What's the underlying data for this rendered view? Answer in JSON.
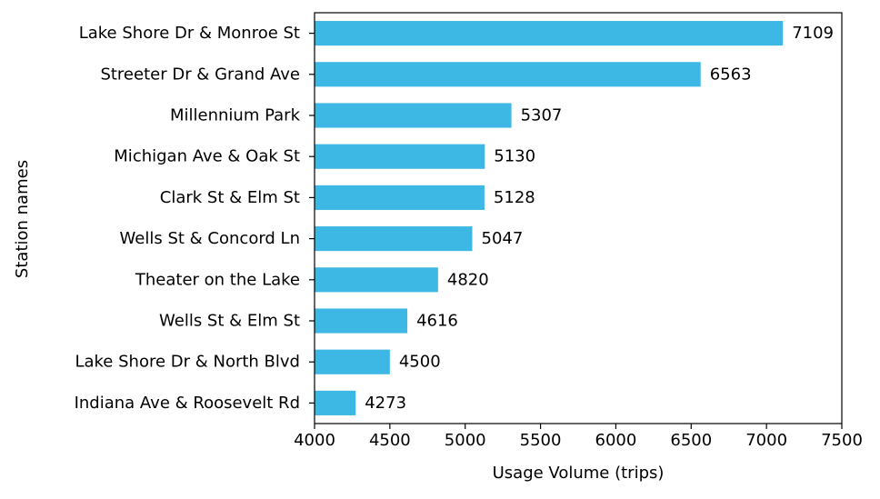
{
  "chart_data": {
    "type": "bar",
    "orientation": "horizontal",
    "xlabel": "Usage Volume (trips)",
    "ylabel": "Station names",
    "xlim": [
      4000,
      7500
    ],
    "xticks": [
      4000,
      4500,
      5000,
      5500,
      6000,
      6500,
      7000,
      7500
    ],
    "grid": false,
    "bar_color": "#3db7e4",
    "categories": [
      "Lake Shore Dr & Monroe St",
      "Streeter Dr & Grand Ave",
      "Millennium Park",
      "Michigan Ave & Oak St",
      "Clark St & Elm St",
      "Wells St & Concord Ln",
      "Theater on the Lake",
      "Wells St & Elm St",
      "Lake Shore Dr & North Blvd",
      "Indiana Ave & Roosevelt Rd"
    ],
    "values": [
      7109,
      6563,
      5307,
      5130,
      5128,
      5047,
      4820,
      4616,
      4500,
      4273
    ],
    "data_labels": [
      "7109",
      "6563",
      "5307",
      "5130",
      "5128",
      "5047",
      "4820",
      "4616",
      "4500",
      "4273"
    ]
  }
}
